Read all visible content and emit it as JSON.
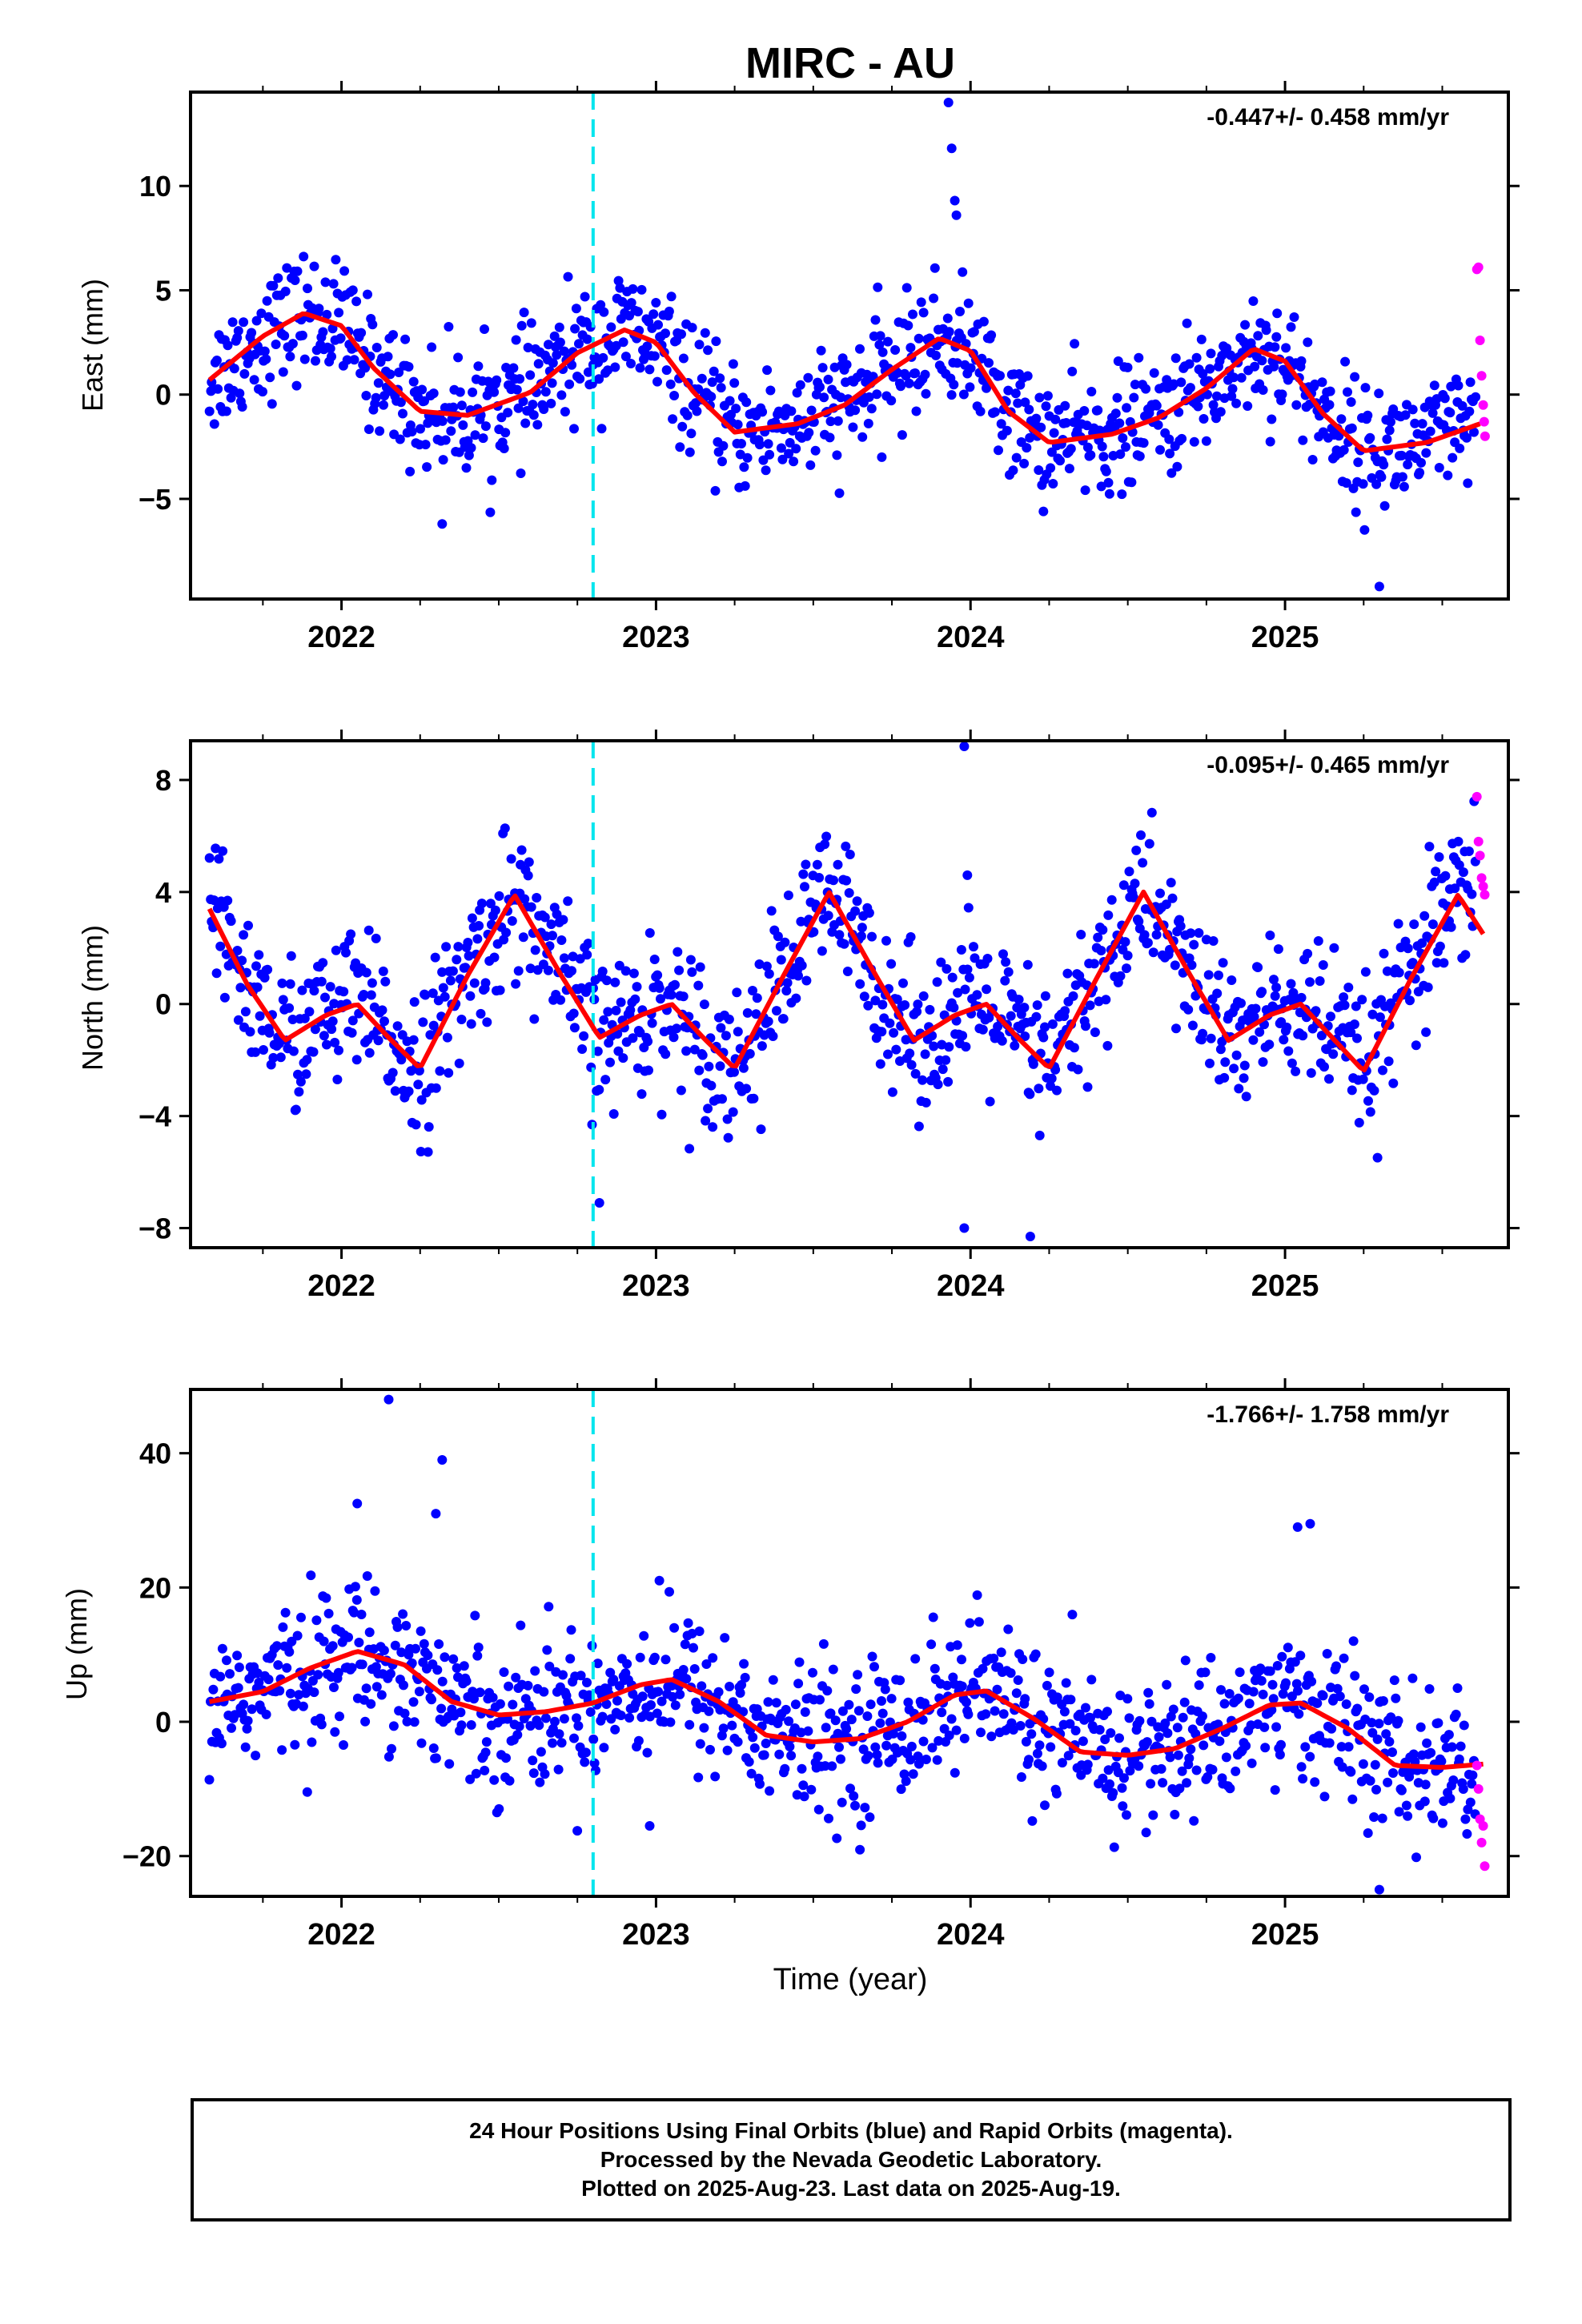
{
  "title": "MIRC - AU",
  "xlabel": "Time (year)",
  "footer": {
    "line1": "24 Hour Positions Using Final Orbits (blue) and Rapid Orbits (magenta).",
    "line2": "Processed by the Nevada Geodetic Laboratory.",
    "line3": "Plotted on 2025-Aug-23. Last data on 2025-Aug-19."
  },
  "colors": {
    "final": "#0000ff",
    "rapid": "#ff00ff",
    "fit": "#ff0000",
    "event": "#00e5ee"
  },
  "chart_data": [
    {
      "type": "scatter",
      "component": "east",
      "ylabel": "East (mm)",
      "rate": "-0.447+/- 0.458 mm/yr",
      "xlim": [
        2021.52,
        2025.71
      ],
      "ylim": [
        -9.8,
        14.5
      ],
      "yticks": [
        -5,
        0,
        5,
        10
      ],
      "ytick_labels": [
        "−5",
        "0",
        "5",
        "10"
      ],
      "xticks": [
        2022,
        2023,
        2024,
        2025
      ],
      "xtick_labels": [
        "2022",
        "2023",
        "2024",
        "2025"
      ],
      "event_line_x": 2022.8,
      "fit": {
        "x": [
          2021.58,
          2021.75,
          2021.88,
          2022.0,
          2022.1,
          2022.25,
          2022.4,
          2022.6,
          2022.75,
          2022.9,
          2023.0,
          2023.12,
          2023.25,
          2023.45,
          2023.6,
          2023.75,
          2023.9,
          2024.0,
          2024.12,
          2024.25,
          2024.45,
          2024.6,
          2024.75,
          2024.9,
          2025.0,
          2025.12,
          2025.25,
          2025.45,
          2025.62
        ],
        "y": [
          0.7,
          2.8,
          3.9,
          3.3,
          1.3,
          -0.8,
          -1.0,
          0.1,
          2.0,
          3.1,
          2.5,
          0.1,
          -1.8,
          -1.4,
          -0.5,
          1.2,
          2.7,
          2.1,
          -0.8,
          -2.3,
          -1.9,
          -1.1,
          0.3,
          2.2,
          1.6,
          -0.9,
          -2.7,
          -2.3,
          -1.4
        ]
      },
      "rapid": {
        "x": [
          2025.61,
          2025.615,
          2025.62,
          2025.625,
          2025.63,
          2025.633,
          2025.636
        ],
        "y": [
          6.0,
          6.1,
          2.6,
          0.9,
          -0.5,
          -1.3,
          -2.0
        ]
      },
      "outliers": {
        "x": [
          2023.93,
          2023.94,
          2023.95,
          2023.955,
          2025.3,
          2022.32
        ],
        "y": [
          14.0,
          11.8,
          9.3,
          8.6,
          -9.2,
          -6.2
        ]
      },
      "scatter_sd": 1.45
    },
    {
      "type": "scatter",
      "component": "north",
      "ylabel": "North (mm)",
      "rate": "-0.095+/- 0.465 mm/yr",
      "xlim": [
        2021.52,
        2025.71
      ],
      "ylim": [
        -8.7,
        9.4
      ],
      "yticks": [
        -8,
        -4,
        0,
        4,
        8
      ],
      "ytick_labels": [
        "−8",
        "−4",
        "0",
        "4",
        "8"
      ],
      "xticks": [
        2022,
        2023,
        2024,
        2025
      ],
      "xtick_labels": [
        "2022",
        "2023",
        "2024",
        "2025"
      ],
      "event_line_x": 2022.8,
      "fit": {
        "x": [
          2021.58,
          2021.7,
          2021.82,
          2021.95,
          2022.05,
          2022.15,
          2022.25,
          2022.4,
          2022.55,
          2022.7,
          2022.82,
          2022.95,
          2023.05,
          2023.15,
          2023.25,
          2023.4,
          2023.55,
          2023.7,
          2023.82,
          2023.95,
          2024.05,
          2024.15,
          2024.25,
          2024.4,
          2024.55,
          2024.7,
          2024.82,
          2024.95,
          2025.05,
          2025.15,
          2025.25,
          2025.4,
          2025.55,
          2025.63
        ],
        "y": [
          3.4,
          0.7,
          -1.3,
          -0.4,
          0.0,
          -1.2,
          -2.3,
          1.0,
          3.9,
          1.0,
          -1.2,
          -0.4,
          0.0,
          -1.2,
          -2.3,
          0.9,
          4.0,
          1.0,
          -1.3,
          -0.4,
          0.0,
          -1.2,
          -2.3,
          0.9,
          4.0,
          1.0,
          -1.3,
          -0.4,
          0.0,
          -1.2,
          -2.4,
          0.9,
          3.9,
          2.5
        ]
      },
      "rapid": {
        "x": [
          2025.61,
          2025.615,
          2025.62,
          2025.625,
          2025.63,
          2025.635
        ],
        "y": [
          7.4,
          5.8,
          5.3,
          4.5,
          4.2,
          3.9
        ]
      },
      "outliers": {
        "x": [
          2023.98,
          2023.99,
          2024.19,
          2022.82,
          2023.98
        ],
        "y": [
          9.2,
          4.6,
          -8.3,
          -7.1,
          -8.0
        ]
      },
      "scatter_sd": 1.35
    },
    {
      "type": "scatter",
      "component": "up",
      "ylabel": "Up (mm)",
      "rate": "-1.766+/- 1.758 mm/yr",
      "xlim": [
        2021.52,
        2025.71
      ],
      "ylim": [
        -26,
        49.5
      ],
      "yticks": [
        -20,
        0,
        20,
        40
      ],
      "ytick_labels": [
        "−20",
        "0",
        "20",
        "40"
      ],
      "xticks": [
        2022,
        2023,
        2024,
        2025
      ],
      "xtick_labels": [
        "2022",
        "2023",
        "2024",
        "2025"
      ],
      "event_line_x": 2022.8,
      "fit": {
        "x": [
          2021.58,
          2021.75,
          2021.9,
          2022.05,
          2022.2,
          2022.35,
          2022.5,
          2022.65,
          2022.8,
          2022.95,
          2023.05,
          2023.2,
          2023.35,
          2023.5,
          2023.65,
          2023.8,
          2023.95,
          2024.05,
          2024.2,
          2024.35,
          2024.5,
          2024.65,
          2024.8,
          2024.95,
          2025.05,
          2025.2,
          2025.35,
          2025.5,
          2025.63
        ],
        "y": [
          3.0,
          4.5,
          8.0,
          10.5,
          8.5,
          3.0,
          1.0,
          1.5,
          2.8,
          5.5,
          6.3,
          3.0,
          -2.0,
          -3.0,
          -2.5,
          0.0,
          4.0,
          4.6,
          0.5,
          -4.5,
          -5.0,
          -4.0,
          -1.0,
          2.5,
          2.8,
          -1.0,
          -6.5,
          -6.8,
          -6.3
        ]
      },
      "rapid": {
        "x": [
          2025.61,
          2025.615,
          2025.62,
          2025.625,
          2025.63,
          2025.635
        ],
        "y": [
          -6.5,
          -10.0,
          -14.5,
          -18.0,
          -15.5,
          -21.5
        ]
      },
      "outliers": {
        "x": [
          2022.15,
          2022.32,
          2022.3,
          2022.05,
          2025.04,
          2025.08,
          2025.3,
          2022.98
        ],
        "y": [
          48.0,
          39.0,
          31.0,
          32.5,
          29.0,
          29.5,
          -25.0,
          -15.5
        ]
      },
      "scatter_sd": 5.5
    }
  ]
}
